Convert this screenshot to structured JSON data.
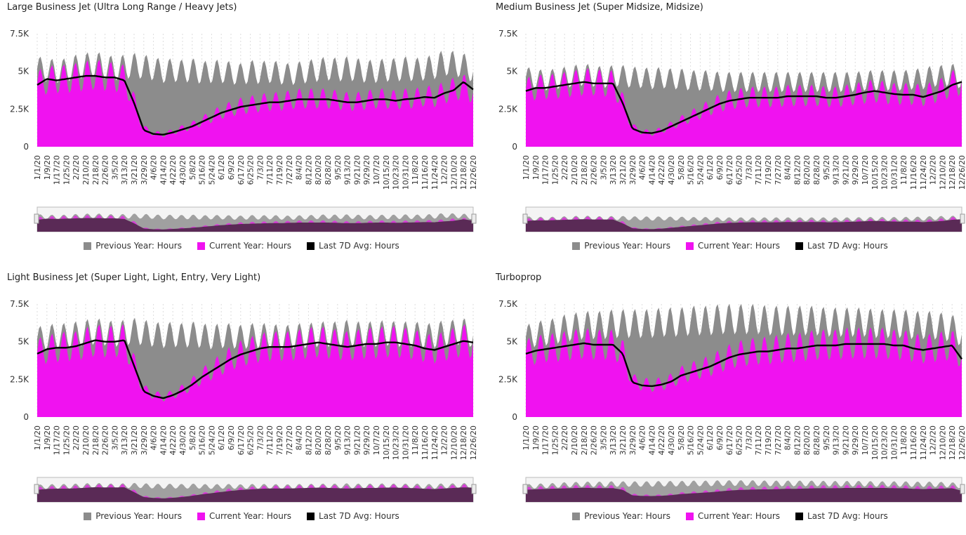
{
  "legend": {
    "previous": "Previous Year: Hours",
    "current": "Current Year: Hours",
    "avg": "Last 7D Avg: Hours"
  },
  "colors": {
    "previous": "#8c8c8c",
    "current": "#f012f0",
    "avg": "#000000",
    "navigator_fill": "#5a2a56"
  },
  "chart_data": [
    {
      "type": "area",
      "title": "Large Business Jet (Ultra Long Range / Heavy Jets)",
      "yticks": [
        "0",
        "2.5K",
        "5K",
        "7.5K"
      ],
      "ylim": [
        0,
        7500
      ],
      "x": [
        "1/1/20",
        "1/9/20",
        "1/17/20",
        "1/25/20",
        "2/2/20",
        "2/10/20",
        "2/18/20",
        "2/26/20",
        "3/5/20",
        "3/13/20",
        "3/21/20",
        "3/29/20",
        "4/6/20",
        "4/14/20",
        "4/22/20",
        "4/30/20",
        "5/8/20",
        "5/16/20",
        "5/24/20",
        "6/1/20",
        "6/9/20",
        "6/17/20",
        "6/25/20",
        "7/3/20",
        "7/11/20",
        "7/19/20",
        "7/27/20",
        "8/4/20",
        "8/12/20",
        "8/20/20",
        "8/28/20",
        "9/5/20",
        "9/13/20",
        "9/21/20",
        "9/29/20",
        "10/7/20",
        "10/15/20",
        "10/23/20",
        "10/31/20",
        "11/8/20",
        "11/16/20",
        "11/24/20",
        "12/2/20",
        "12/10/20",
        "12/18/20",
        "12/26/20"
      ],
      "series": [
        {
          "name": "Previous Year: Hours",
          "values": [
            5200,
            5100,
            5000,
            5100,
            5300,
            5400,
            5500,
            5300,
            5200,
            5300,
            5400,
            5300,
            5200,
            5000,
            5100,
            5000,
            5100,
            4900,
            5000,
            5000,
            4900,
            4800,
            5000,
            4900,
            5000,
            4900,
            4800,
            4900,
            5000,
            5100,
            5200,
            5100,
            5200,
            5100,
            5000,
            5000,
            5100,
            5100,
            5200,
            5100,
            5200,
            5300,
            5600,
            5500,
            5400,
            5000
          ]
        },
        {
          "name": "Current Year: Hours",
          "values": [
            4200,
            4400,
            4500,
            4500,
            4600,
            4700,
            4800,
            4700,
            4600,
            4500,
            3000,
            1200,
            900,
            800,
            1000,
            1200,
            1400,
            1700,
            2000,
            2300,
            2500,
            2700,
            2800,
            2900,
            3000,
            3000,
            3100,
            3200,
            3200,
            3200,
            3200,
            3100,
            3000,
            3000,
            3100,
            3200,
            3200,
            3100,
            3200,
            3200,
            3400,
            3300,
            3600,
            3800,
            4000,
            3600
          ]
        },
        {
          "name": "Last 7D Avg: Hours",
          "values": [
            4100,
            4500,
            4400,
            4500,
            4600,
            4700,
            4700,
            4600,
            4600,
            4400,
            2900,
            1100,
            850,
            800,
            950,
            1150,
            1350,
            1650,
            1950,
            2250,
            2450,
            2650,
            2750,
            2850,
            2950,
            2950,
            3050,
            3150,
            3150,
            3150,
            3150,
            3050,
            2950,
            2950,
            3050,
            3150,
            3150,
            3050,
            3150,
            3200,
            3300,
            3250,
            3550,
            3750,
            4300,
            3800
          ]
        }
      ]
    },
    {
      "type": "area",
      "title": "Medium Business Jet (Super Midsize, Midsize)",
      "yticks": [
        "0",
        "2.5K",
        "5K",
        "7.5K"
      ],
      "ylim": [
        0,
        7500
      ],
      "x": [
        "1/1/20",
        "1/9/20",
        "1/17/20",
        "1/25/20",
        "2/2/20",
        "2/10/20",
        "2/18/20",
        "2/26/20",
        "3/5/20",
        "3/13/20",
        "3/21/20",
        "3/29/20",
        "4/6/20",
        "4/14/20",
        "4/22/20",
        "4/30/20",
        "5/8/20",
        "5/16/20",
        "5/24/20",
        "6/1/20",
        "6/9/20",
        "6/17/20",
        "6/25/20",
        "7/3/20",
        "7/11/20",
        "7/19/20",
        "7/27/20",
        "8/4/20",
        "8/12/20",
        "8/20/20",
        "8/28/20",
        "9/5/20",
        "9/13/20",
        "9/21/20",
        "9/29/20",
        "10/7/20",
        "10/15/20",
        "10/23/20",
        "10/31/20",
        "11/8/20",
        "11/16/20",
        "11/24/20",
        "12/2/20",
        "12/10/20",
        "12/18/20",
        "12/26/20"
      ],
      "series": [
        {
          "name": "Previous Year: Hours",
          "values": [
            4600,
            4500,
            4400,
            4500,
            4600,
            4700,
            4800,
            4700,
            4600,
            4700,
            4700,
            4600,
            4600,
            4500,
            4600,
            4500,
            4500,
            4400,
            4400,
            4400,
            4300,
            4300,
            4300,
            4300,
            4300,
            4300,
            4300,
            4300,
            4300,
            4300,
            4300,
            4300,
            4300,
            4300,
            4300,
            4400,
            4400,
            4400,
            4400,
            4400,
            4500,
            4500,
            4700,
            4700,
            4800,
            4500
          ]
        },
        {
          "name": "Current Year: Hours",
          "values": [
            3800,
            3900,
            4000,
            4000,
            4100,
            4200,
            4300,
            4300,
            4200,
            4200,
            3000,
            1300,
            1000,
            900,
            1100,
            1400,
            1700,
            2000,
            2300,
            2600,
            2900,
            3100,
            3200,
            3300,
            3300,
            3300,
            3300,
            3400,
            3400,
            3400,
            3400,
            3300,
            3300,
            3400,
            3500,
            3600,
            3700,
            3600,
            3500,
            3500,
            3500,
            3400,
            3600,
            3800,
            4200,
            4300
          ]
        },
        {
          "name": "Last 7D Avg: Hours",
          "values": [
            3700,
            3900,
            3900,
            4000,
            4100,
            4200,
            4300,
            4200,
            4200,
            4200,
            2900,
            1200,
            950,
            900,
            1050,
            1350,
            1650,
            1950,
            2250,
            2550,
            2850,
            3050,
            3150,
            3250,
            3250,
            3250,
            3250,
            3350,
            3350,
            3350,
            3350,
            3250,
            3250,
            3350,
            3450,
            3600,
            3700,
            3600,
            3500,
            3450,
            3450,
            3300,
            3500,
            3700,
            4100,
            4300
          ]
        }
      ]
    },
    {
      "type": "area",
      "title": "Light Business Jet (Super Light, Light, Entry, Very Light)",
      "yticks": [
        "0",
        "2.5K",
        "5K",
        "7.5K"
      ],
      "ylim": [
        0,
        7500
      ],
      "x": [
        "1/1/20",
        "1/9/20",
        "1/17/20",
        "1/25/20",
        "2/2/20",
        "2/10/20",
        "2/18/20",
        "2/26/20",
        "3/5/20",
        "3/13/20",
        "3/21/20",
        "3/29/20",
        "4/6/20",
        "4/14/20",
        "4/22/20",
        "4/30/20",
        "5/8/20",
        "5/16/20",
        "5/24/20",
        "6/1/20",
        "6/9/20",
        "6/17/20",
        "6/25/20",
        "7/3/20",
        "7/11/20",
        "7/19/20",
        "7/27/20",
        "8/4/20",
        "8/12/20",
        "8/20/20",
        "8/28/20",
        "9/5/20",
        "9/13/20",
        "9/21/20",
        "9/29/20",
        "10/7/20",
        "10/15/20",
        "10/23/20",
        "10/31/20",
        "11/8/20",
        "11/16/20",
        "11/24/20",
        "12/2/20",
        "12/10/20",
        "12/18/20",
        "12/26/20"
      ],
      "series": [
        {
          "name": "Previous Year: Hours",
          "values": [
            5200,
            5300,
            5400,
            5400,
            5500,
            5600,
            5700,
            5600,
            5500,
            5600,
            5700,
            5600,
            5500,
            5400,
            5500,
            5400,
            5500,
            5400,
            5300,
            5400,
            5400,
            5300,
            5400,
            5400,
            5400,
            5300,
            5300,
            5400,
            5400,
            5500,
            5500,
            5500,
            5600,
            5500,
            5500,
            5500,
            5600,
            5500,
            5500,
            5500,
            5400,
            5400,
            5600,
            5600,
            5700,
            5400
          ]
        },
        {
          "name": "Current Year: Hours",
          "values": [
            4300,
            4500,
            4600,
            4700,
            4700,
            4900,
            5100,
            5000,
            5000,
            5100,
            3500,
            1800,
            1500,
            1300,
            1500,
            1800,
            2200,
            2700,
            3100,
            3500,
            3900,
            4200,
            4400,
            4600,
            4700,
            4700,
            4700,
            4800,
            4900,
            5000,
            4900,
            4800,
            4700,
            4800,
            4900,
            4900,
            5000,
            5000,
            4900,
            4800,
            4600,
            4500,
            4700,
            4900,
            5100,
            4900
          ]
        },
        {
          "name": "Last 7D Avg: Hours",
          "values": [
            4200,
            4500,
            4600,
            4600,
            4700,
            4900,
            5100,
            5000,
            5000,
            5100,
            3400,
            1700,
            1400,
            1250,
            1450,
            1750,
            2150,
            2650,
            3050,
            3450,
            3850,
            4150,
            4350,
            4550,
            4650,
            4650,
            4650,
            4750,
            4850,
            4950,
            4850,
            4750,
            4650,
            4750,
            4850,
            4850,
            4950,
            4950,
            4850,
            4750,
            4550,
            4450,
            4650,
            4850,
            5050,
            4950
          ]
        }
      ]
    },
    {
      "type": "area",
      "title": "Turboprop",
      "yticks": [
        "0",
        "2.5K",
        "5K",
        "7.5K"
      ],
      "ylim": [
        0,
        7500
      ],
      "x": [
        "1/1/20",
        "1/9/20",
        "1/17/20",
        "1/25/20",
        "2/2/20",
        "2/10/20",
        "2/18/20",
        "2/26/20",
        "3/5/20",
        "3/13/20",
        "3/21/20",
        "3/29/20",
        "4/6/20",
        "4/14/20",
        "4/22/20",
        "4/30/20",
        "5/8/20",
        "5/16/20",
        "5/24/20",
        "6/1/20",
        "6/9/20",
        "6/17/20",
        "6/25/20",
        "7/3/20",
        "7/11/20",
        "7/19/20",
        "7/27/20",
        "8/4/20",
        "8/12/20",
        "8/20/20",
        "8/28/20",
        "9/5/20",
        "9/13/20",
        "9/21/20",
        "9/29/20",
        "10/7/20",
        "10/15/20",
        "10/23/20",
        "10/31/20",
        "11/8/20",
        "11/16/20",
        "11/24/20",
        "12/2/20",
        "12/10/20",
        "12/18/20",
        "12/26/20"
      ],
      "series": [
        {
          "name": "Previous Year: Hours",
          "values": [
            5300,
            5500,
            5600,
            5700,
            5900,
            6000,
            6100,
            6100,
            6100,
            6200,
            6200,
            6200,
            6200,
            6200,
            6300,
            6300,
            6300,
            6400,
            6400,
            6400,
            6500,
            6500,
            6500,
            6500,
            6500,
            6400,
            6400,
            6400,
            6400,
            6400,
            6400,
            6300,
            6300,
            6300,
            6300,
            6300,
            6200,
            6200,
            6200,
            6200,
            6100,
            6100,
            6100,
            6000,
            5900,
            5500
          ]
        },
        {
          "name": "Current Year: Hours",
          "values": [
            4300,
            4400,
            4600,
            4600,
            4700,
            4800,
            4900,
            4800,
            4800,
            4800,
            4300,
            2400,
            2200,
            2100,
            2200,
            2400,
            2800,
            3000,
            3200,
            3400,
            3700,
            4000,
            4200,
            4300,
            4400,
            4400,
            4500,
            4600,
            4600,
            4700,
            4800,
            4800,
            4800,
            4900,
            4900,
            4900,
            4900,
            4900,
            4800,
            4800,
            4600,
            4500,
            4600,
            4700,
            4800,
            4000
          ]
        },
        {
          "name": "Last 7D Avg: Hours",
          "values": [
            4200,
            4400,
            4500,
            4600,
            4700,
            4800,
            4900,
            4800,
            4800,
            4800,
            4200,
            2300,
            2100,
            2050,
            2150,
            2350,
            2750,
            2950,
            3150,
            3350,
            3650,
            3950,
            4150,
            4250,
            4350,
            4350,
            4450,
            4550,
            4550,
            4650,
            4750,
            4750,
            4750,
            4850,
            4850,
            4850,
            4850,
            4850,
            4750,
            4750,
            4550,
            4450,
            4550,
            4650,
            4750,
            3850
          ]
        }
      ]
    }
  ]
}
